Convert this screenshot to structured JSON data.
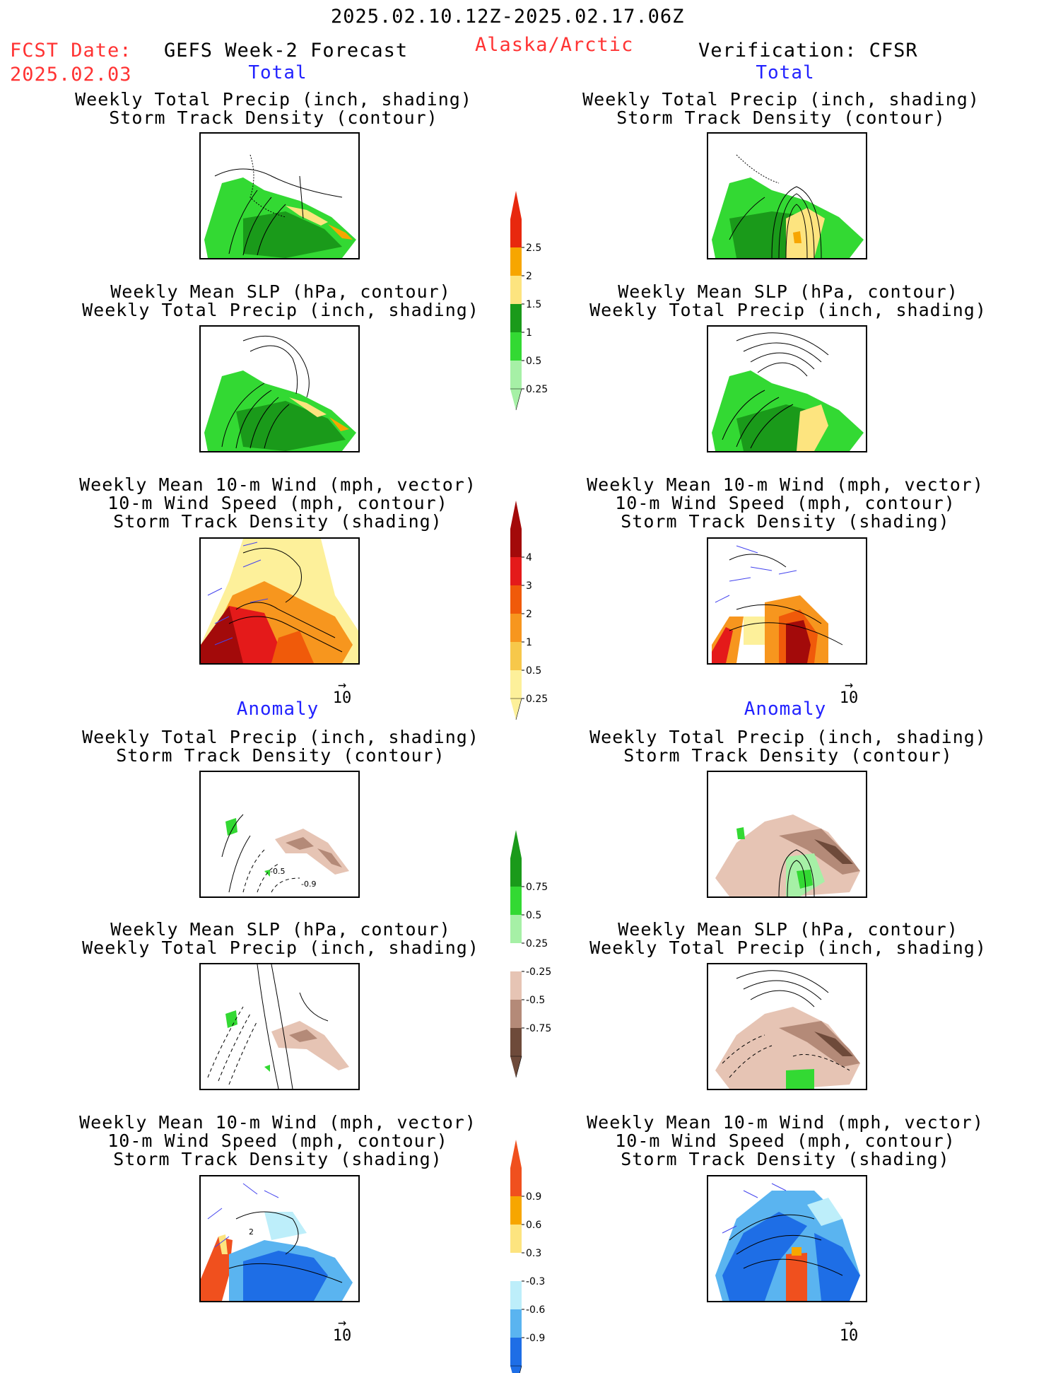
{
  "header": {
    "period": "2025.02.10.12Z-2025.02.17.06Z",
    "fcst_label": "FCST Date:",
    "fcst_date": "2025.02.03",
    "product": "GEFS Week-2 Forecast",
    "region": "Alaska/Arctic",
    "verification": "Verification: CFSR"
  },
  "sections": {
    "total": "Total",
    "anomaly": "Anomaly"
  },
  "titles": {
    "precip_track": [
      "Weekly Total Precip (inch, shading)",
      "Storm Track Density (contour)"
    ],
    "slp_precip": [
      "Weekly Mean SLP (hPa, contour)",
      "Weekly Total Precip (inch, shading)"
    ],
    "wind_track": [
      "Weekly Mean 10-m Wind (mph, vector)",
      "10-m Wind Speed (mph, contour)",
      "Storm Track Density (shading)"
    ]
  },
  "vector_ref": "10",
  "contour_labels": {
    "neg_05": "-0.5",
    "neg_09": "-0.9",
    "wind_2": "2"
  },
  "colorbars": [
    {
      "id": "total_precip",
      "labels": [
        "2.5",
        "2",
        "1.5",
        "1",
        "0.5",
        "0.25"
      ],
      "colors": [
        "#e8280e",
        "#f7a600",
        "#fde47f",
        "#1a9a1a",
        "#33d933",
        "#a6f0a6"
      ]
    },
    {
      "id": "total_track",
      "labels": [
        "4",
        "3",
        "2",
        "1",
        "0.5",
        "0.25"
      ],
      "colors": [
        "#a30a0a",
        "#e41a1a",
        "#f05a0a",
        "#f7961e",
        "#f7c84a",
        "#fdf09a"
      ]
    },
    {
      "id": "anom_precip",
      "labels": [
        "0.75",
        "0.5",
        "0.25",
        "-0.25",
        "-0.5",
        "-0.75"
      ],
      "colors": [
        "#1a9a1a",
        "#33d933",
        "#a6f0a6",
        "#ffffff",
        "#e6c4b4",
        "#b48a78",
        "#6e4a3a"
      ]
    },
    {
      "id": "anom_track",
      "labels": [
        "0.9",
        "0.6",
        "0.3",
        "-0.3",
        "-0.6",
        "-0.9"
      ],
      "colors": [
        "#f0501e",
        "#f7a600",
        "#fde47f",
        "#ffffff",
        "#bdeefa",
        "#5ab4f0",
        "#1e6ee6"
      ]
    }
  ],
  "colors": {
    "red_text": "#ff3333",
    "blue_text": "#2222ff",
    "vector": "#4444ee"
  }
}
